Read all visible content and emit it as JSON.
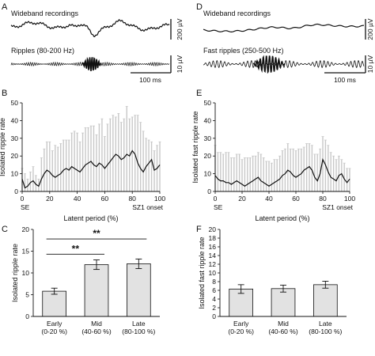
{
  "panels": {
    "A": {
      "letter": "A",
      "wideband_label": "Wideband recordings",
      "wideband_scale": "200 µV",
      "filtered_label": "Ripples (80-200 Hz)",
      "filtered_scale": "10 µV",
      "time_scale": "100 ms"
    },
    "D": {
      "letter": "D",
      "wideband_label": "Wideband recordings",
      "wideband_scale": "200 µV",
      "filtered_label": "Fast ripples (250-500 Hz)",
      "filtered_scale": "10 µV",
      "time_scale": "100 ms"
    },
    "B_letter": "B",
    "E_letter": "E",
    "C_letter": "C",
    "F_letter": "F"
  },
  "chart_data": [
    {
      "id": "B",
      "type": "line",
      "ylabel": "Isolated ripple rate",
      "xlabel": "Latent period (%)",
      "xlim": [
        0,
        100
      ],
      "ylim": [
        0,
        50
      ],
      "xticks": [
        0,
        20,
        40,
        60,
        80,
        100
      ],
      "yticks": [
        0,
        10,
        20,
        30,
        40,
        50
      ],
      "start_label": "SE",
      "end_label": "SZ1 onset",
      "x": [
        0,
        2,
        4,
        6,
        8,
        10,
        12,
        14,
        16,
        18,
        20,
        22,
        24,
        26,
        28,
        30,
        32,
        34,
        36,
        38,
        40,
        42,
        44,
        46,
        48,
        50,
        52,
        54,
        56,
        58,
        60,
        62,
        64,
        66,
        68,
        70,
        72,
        74,
        76,
        78,
        80,
        82,
        84,
        86,
        88,
        90,
        92,
        94,
        96,
        98,
        100
      ],
      "mean": [
        7,
        2,
        3,
        5,
        6,
        4,
        3,
        7,
        10,
        12,
        11,
        9,
        8,
        9,
        10,
        12,
        13,
        12,
        14,
        13,
        12,
        11,
        13,
        15,
        16,
        17,
        15,
        14,
        16,
        15,
        13,
        15,
        17,
        19,
        21,
        20,
        18,
        19,
        21,
        20,
        23,
        21,
        16,
        13,
        11,
        14,
        16,
        18,
        12,
        13,
        15
      ],
      "sem": [
        6,
        8,
        4,
        6,
        8,
        5,
        4,
        12,
        14,
        16,
        17,
        14,
        18,
        16,
        17,
        17,
        16,
        17,
        19,
        21,
        21,
        17,
        20,
        21,
        20,
        20,
        22,
        18,
        22,
        26,
        18,
        23,
        24,
        24,
        21,
        24,
        21,
        22,
        27,
        21,
        19,
        22,
        27,
        26,
        23,
        16,
        13,
        10,
        11,
        13,
        13
      ]
    },
    {
      "id": "E",
      "type": "line",
      "ylabel": "Isolated fast ripple rate",
      "xlabel": "Latent period (%)",
      "xlim": [
        0,
        100
      ],
      "ylim": [
        0,
        50
      ],
      "xticks": [
        0,
        20,
        40,
        60,
        80,
        100
      ],
      "yticks": [
        0,
        10,
        20,
        30,
        40,
        50
      ],
      "start_label": "SE",
      "end_label": "SZ1 onset",
      "x": [
        0,
        2,
        4,
        6,
        8,
        10,
        12,
        14,
        16,
        18,
        20,
        22,
        24,
        26,
        28,
        30,
        32,
        34,
        36,
        38,
        40,
        42,
        44,
        46,
        48,
        50,
        52,
        54,
        56,
        58,
        60,
        62,
        64,
        66,
        68,
        70,
        72,
        74,
        76,
        78,
        80,
        82,
        84,
        86,
        88,
        90,
        92,
        94,
        96,
        98,
        100
      ],
      "mean": [
        9,
        7,
        6,
        6,
        5,
        5,
        4,
        5,
        6,
        5,
        4,
        3,
        4,
        5,
        6,
        7,
        8,
        6,
        5,
        4,
        3,
        4,
        5,
        6,
        7,
        9,
        10,
        12,
        11,
        9,
        8,
        9,
        10,
        12,
        13,
        14,
        12,
        8,
        6,
        10,
        18,
        15,
        11,
        8,
        7,
        6,
        9,
        10,
        7,
        5,
        7
      ],
      "sem": [
        17,
        15,
        16,
        15,
        17,
        17,
        15,
        14,
        15,
        16,
        14,
        16,
        15,
        14,
        14,
        13,
        14,
        15,
        14,
        13,
        14,
        12,
        13,
        12,
        13,
        14,
        14,
        15,
        13,
        15,
        15,
        15,
        14,
        13,
        14,
        13,
        14,
        13,
        15,
        14,
        13,
        14,
        15,
        14,
        13,
        12,
        11,
        8,
        9,
        8,
        6
      ]
    },
    {
      "id": "C",
      "type": "bar",
      "ylabel": "Isolated ripple rate",
      "ylim": [
        0,
        20
      ],
      "yticks": [
        0,
        5,
        10,
        15,
        20
      ],
      "categories": [
        {
          "name": "Early",
          "range": "(0-20 %)"
        },
        {
          "name": "Mid",
          "range": "(40-60 %)"
        },
        {
          "name": "Late",
          "range": "(80-100 %)"
        }
      ],
      "values": [
        5.8,
        11.9,
        12.1
      ],
      "errors": [
        0.7,
        1.1,
        1.1
      ],
      "significance": [
        {
          "from": 0,
          "to": 1,
          "label": "**"
        },
        {
          "from": 0,
          "to": 2,
          "label": "**"
        }
      ]
    },
    {
      "id": "F",
      "type": "bar",
      "ylabel": "Isolated fast ripple rate",
      "ylim": [
        0,
        20
      ],
      "yticks": [
        0,
        2,
        4,
        6,
        8,
        10,
        12,
        14,
        16,
        18,
        20
      ],
      "categories": [
        {
          "name": "Early",
          "range": "(0-20 %)"
        },
        {
          "name": "Mid",
          "range": "(40-60 %)"
        },
        {
          "name": "Late",
          "range": "(80-100 %)"
        }
      ],
      "values": [
        6.3,
        6.4,
        7.3
      ],
      "errors": [
        1.0,
        0.8,
        0.8
      ],
      "significance": []
    }
  ],
  "colors": {
    "trace": "#111111",
    "sem_bar": "#c8c8c8",
    "bar_fill": "#e2e2e2",
    "axis": "#111111"
  }
}
